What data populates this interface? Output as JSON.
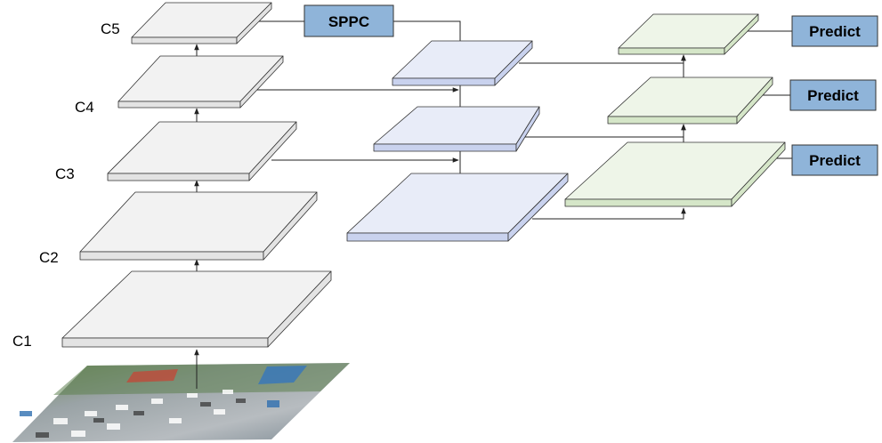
{
  "backbone_labels": [
    "C1",
    "C2",
    "C3",
    "C4",
    "C5"
  ],
  "sppc_label": "SPPC",
  "predict_labels": [
    "Predict",
    "Predict",
    "Predict"
  ],
  "colors": {
    "backbone_top": "#f2f2f2",
    "backbone_front": "#e3e3e3",
    "neck_top": "#e8ecf8",
    "neck_front": "#c9d2ee",
    "head_top": "#eef5e8",
    "head_front": "#d5e6c8",
    "box_fill": "#8fb4d9",
    "line": "#222222"
  }
}
